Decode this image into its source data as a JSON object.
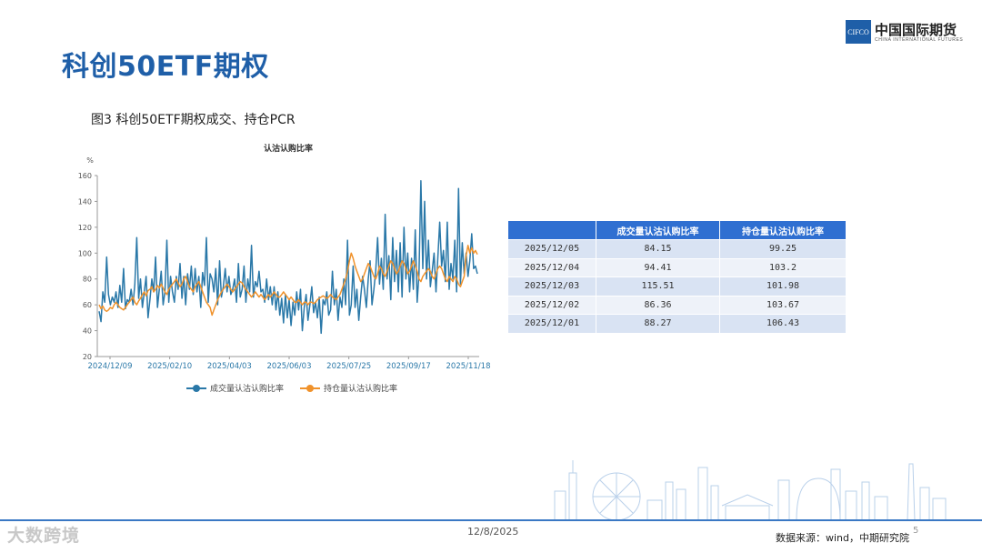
{
  "page": {
    "title": "科创50ETF期权",
    "figure_caption": "图3 科创50ETF期权成交、持仓PCR"
  },
  "logo": {
    "box_text": "CIFCO",
    "name_cn": "中国国际期货",
    "name_en": "CHINA INTERNATIONAL FUTURES"
  },
  "colors": {
    "brand_blue": "#1f5fa8",
    "series_volume": "#2a78a8",
    "series_oi": "#f0922b",
    "table_header": "#2f6fd1"
  },
  "chart_data": {
    "type": "line",
    "title": "认沽认购比率",
    "ylabel": "%",
    "ylim": [
      20,
      160
    ],
    "yticks": [
      20,
      40,
      60,
      80,
      100,
      120,
      140,
      160
    ],
    "x_ticks": [
      "2024/12/09",
      "2025/02/10",
      "2025/04/03",
      "2025/06/03",
      "2025/07/25",
      "2025/09/17",
      "2025/11/18"
    ],
    "grid": false,
    "legend_position": "bottom",
    "series": [
      {
        "name": "成交量认沽认购比率",
        "values": [
          55,
          47,
          70,
          62,
          97,
          68,
          60,
          66,
          62,
          70,
          58,
          75,
          62,
          88,
          57,
          64,
          62,
          72,
          60,
          76,
          112,
          65,
          80,
          58,
          70,
          82,
          50,
          64,
          80,
          70,
          97,
          58,
          72,
          86,
          60,
          70,
          110,
          62,
          82,
          70,
          62,
          82,
          72,
          92,
          65,
          82,
          60,
          84,
          72,
          90,
          68,
          88,
          70,
          82,
          58,
          85,
          75,
          112,
          62,
          84,
          80,
          70,
          88,
          60,
          94,
          66,
          74,
          88,
          70,
          82,
          68,
          72,
          80,
          62,
          92,
          66,
          72,
          90,
          62,
          80,
          70,
          106,
          66,
          78,
          74,
          86,
          70,
          72,
          62,
          80,
          64,
          74,
          60,
          74,
          56,
          70,
          52,
          65,
          46,
          68,
          50,
          64,
          44,
          62,
          52,
          70,
          56,
          72,
          40,
          58,
          68,
          48,
          60,
          74,
          54,
          62,
          50,
          66,
          38,
          64,
          60,
          70,
          52,
          56,
          86,
          60,
          72,
          48,
          66,
          58,
          80,
          60,
          110,
          52,
          60,
          90,
          58,
          72,
          48,
          66,
          82,
          72,
          58,
          80,
          94,
          60,
          72,
          86,
          112,
          76,
          96,
          72,
          130,
          80,
          98,
          64,
          112,
          78,
          102,
          70,
          108,
          66,
          120,
          80,
          100,
          70,
          96,
          72,
          118,
          62,
          84,
          156,
          88,
          140,
          80,
          110,
          74,
          86,
          100,
          70,
          96,
          124,
          90,
          102,
          78,
          124,
          72,
          92,
          80,
          110,
          70,
          150,
          76,
          108,
          84,
          100,
          82,
          94,
          115,
          88,
          90,
          84
        ]
      },
      {
        "name": "持仓量认沽认购比率",
        "values": [
          60,
          57,
          59,
          56,
          55,
          56,
          58,
          57,
          60,
          62,
          60,
          58,
          57,
          56,
          58,
          60,
          62,
          64,
          66,
          62,
          60,
          63,
          65,
          68,
          70,
          67,
          71,
          72,
          74,
          70,
          72,
          75,
          73,
          76,
          73,
          70,
          68,
          72,
          74,
          76,
          78,
          80,
          77,
          74,
          76,
          80,
          82,
          78,
          74,
          72,
          70,
          74,
          76,
          78,
          74,
          70,
          66,
          62,
          60,
          58,
          52,
          56,
          60,
          64,
          67,
          70,
          72,
          74,
          76,
          74,
          72,
          70,
          72,
          74,
          76,
          78,
          77,
          74,
          72,
          70,
          68,
          66,
          68,
          70,
          68,
          66,
          68,
          66,
          64,
          66,
          68,
          66,
          68,
          70,
          68,
          66,
          66,
          68,
          70,
          68,
          66,
          64,
          66,
          64,
          62,
          62,
          64,
          62,
          60,
          62,
          62,
          60,
          62,
          62,
          61,
          62,
          64,
          65,
          66,
          67,
          66,
          65,
          66,
          68,
          66,
          65,
          64,
          66,
          68,
          72,
          76,
          80,
          86,
          94,
          100,
          96,
          90,
          86,
          82,
          78,
          80,
          84,
          88,
          92,
          90,
          86,
          82,
          80,
          84,
          90,
          88,
          84,
          82,
          86,
          90,
          94,
          92,
          88,
          84,
          86,
          90,
          94,
          92,
          88,
          84,
          86,
          90,
          94,
          90,
          86,
          80,
          78,
          82,
          84,
          86,
          88,
          86,
          82,
          80,
          84,
          88,
          90,
          88,
          84,
          80,
          78,
          82,
          80,
          78,
          82,
          80,
          76,
          74,
          78,
          82,
          98,
          106,
          100,
          104,
          100,
          102,
          99
        ]
      }
    ]
  },
  "table": {
    "headers": [
      "",
      "成交量认沽认购比率",
      "持仓量认沽认购比率"
    ],
    "rows": [
      {
        "date": "2025/12/05",
        "volume": "84.15",
        "oi": "99.25"
      },
      {
        "date": "2025/12/04",
        "volume": "94.41",
        "oi": "103.2"
      },
      {
        "date": "2025/12/03",
        "volume": "115.51",
        "oi": "101.98"
      },
      {
        "date": "2025/12/02",
        "volume": "86.36",
        "oi": "103.67"
      },
      {
        "date": "2025/12/01",
        "volume": "88.27",
        "oi": "106.43"
      }
    ]
  },
  "footer": {
    "date": "12/8/2025",
    "source": "数据来源：wind，中期研究院",
    "page": "5",
    "watermark": "大数跨境"
  }
}
